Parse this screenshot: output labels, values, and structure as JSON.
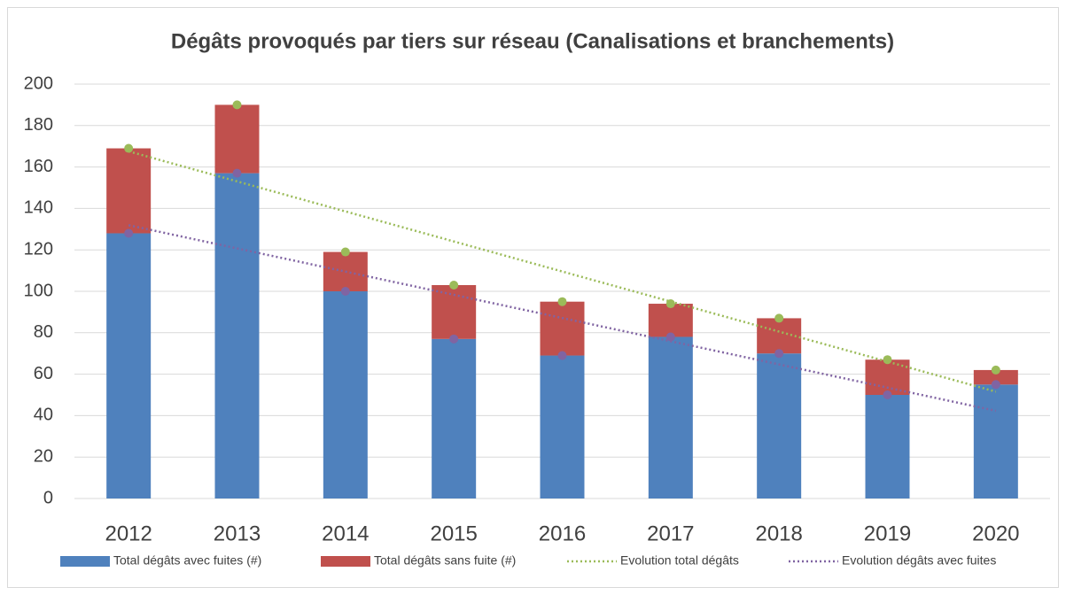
{
  "chart_data": {
    "type": "bar",
    "stacked": true,
    "title": "Dégâts provoqués par tiers sur réseau (Canalisations et branchements)",
    "categories": [
      "2012",
      "2013",
      "2014",
      "2015",
      "2016",
      "2017",
      "2018",
      "2019",
      "2020"
    ],
    "series": [
      {
        "name": "Total dégâts avec fuites (#)",
        "color": "#4f81bd",
        "kind": "bar",
        "values": [
          128,
          157,
          100,
          77,
          69,
          78,
          70,
          50,
          55
        ]
      },
      {
        "name": "Total dégâts sans fuite (#)",
        "color": "#c0504d",
        "kind": "bar",
        "values": [
          41,
          33,
          19,
          26,
          26,
          16,
          17,
          17,
          7
        ]
      },
      {
        "name": "Evolution total dégâts",
        "color": "#9bbb59",
        "kind": "trend",
        "values": [
          169,
          190,
          119,
          103,
          95,
          94,
          87,
          67,
          62
        ]
      },
      {
        "name": "Evolution dégâts avec fuites",
        "color": "#8064a2",
        "kind": "trend",
        "values": [
          128,
          157,
          100,
          77,
          69,
          78,
          70,
          50,
          55
        ]
      }
    ],
    "ylim": [
      0,
      200
    ],
    "yticks": [
      0,
      20,
      40,
      60,
      80,
      100,
      120,
      140,
      160,
      180,
      200
    ],
    "grid": true,
    "legend": "bottom",
    "trendline": "linear"
  }
}
